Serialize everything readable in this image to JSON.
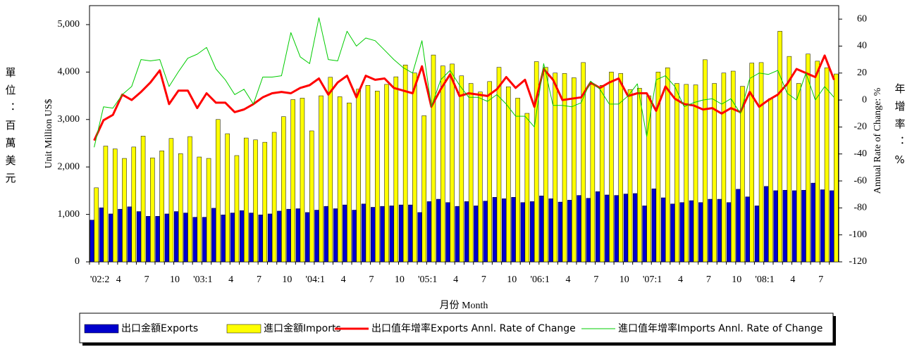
{
  "chart_data": {
    "type": "bar-line",
    "y_label_zh": "單位：百萬美元",
    "y_label": "Unit Million US$",
    "y2_label": "Annual Rate of Change: %",
    "y2_label_zh": "年增率：%",
    "x_label": "月份 Month",
    "categories": [
      "'02:2",
      null,
      "4",
      null,
      null,
      "7",
      null,
      null,
      "10",
      null,
      null,
      "'03:1",
      null,
      null,
      "4",
      null,
      null,
      "7",
      null,
      null,
      "10",
      null,
      null,
      "'04:1",
      null,
      null,
      "4",
      null,
      null,
      "7",
      null,
      null,
      "10",
      null,
      null,
      "'05:1",
      null,
      null,
      "4",
      null,
      null,
      "7",
      null,
      null,
      "10",
      null,
      null,
      "'06:1",
      null,
      null,
      "4",
      null,
      null,
      "7",
      null,
      null,
      "10",
      null,
      null,
      "'07:1",
      null,
      null,
      "4",
      null,
      null,
      "7",
      null,
      null,
      "10",
      null,
      null,
      "'08:1",
      null,
      null,
      "4",
      null,
      null,
      "7",
      null,
      null
    ],
    "ylim": [
      0,
      5400
    ],
    "yticks": [
      0,
      {
        "value": 1000,
        "label": "1,000"
      },
      {
        "value": 2000,
        "label": "2,000"
      },
      {
        "value": 3000,
        "label": "3,000"
      },
      {
        "value": 4000,
        "label": "4,000"
      },
      {
        "value": 5000,
        "label": "5,000"
      }
    ],
    "y2lim": [
      -120,
      70
    ],
    "y2ticks": [
      -120,
      -100,
      -80,
      -60,
      -40,
      -20,
      0,
      20,
      40,
      60
    ],
    "series": [
      {
        "name": "出口金額Exports",
        "kind": "bar",
        "color": "#0000cc",
        "values": [
          880,
          1140,
          1010,
          1110,
          1160,
          1060,
          960,
          960,
          1010,
          1060,
          1030,
          940,
          940,
          1130,
          990,
          1030,
          1080,
          1030,
          990,
          1010,
          1070,
          1110,
          1120,
          1040,
          1090,
          1170,
          1120,
          1200,
          1090,
          1220,
          1150,
          1170,
          1180,
          1200,
          1200,
          1040,
          1270,
          1320,
          1250,
          1170,
          1270,
          1180,
          1280,
          1360,
          1330,
          1360,
          1250,
          1270,
          1390,
          1330,
          1260,
          1300,
          1400,
          1340,
          1480,
          1410,
          1400,
          1430,
          1440,
          1180,
          1540,
          1350,
          1220,
          1250,
          1290,
          1250,
          1320,
          1320,
          1250,
          1530,
          1370,
          1180,
          1590,
          1500,
          1510,
          1500,
          1510,
          1660,
          1520,
          1500
        ]
      },
      {
        "name": "進口金額Imports",
        "kind": "bar",
        "color": "#ffff00",
        "values": [
          1560,
          2440,
          2380,
          2180,
          2420,
          2650,
          2190,
          2340,
          2600,
          2280,
          2640,
          2210,
          2180,
          3000,
          2700,
          2240,
          2610,
          2570,
          2520,
          2730,
          3060,
          3420,
          3450,
          2760,
          3500,
          3890,
          3480,
          3350,
          3640,
          3720,
          3600,
          3740,
          3900,
          4150,
          3980,
          3080,
          4360,
          4130,
          4170,
          3920,
          3760,
          3580,
          3800,
          4100,
          3690,
          3450,
          3130,
          4220,
          4100,
          3980,
          3970,
          3880,
          4200,
          3740,
          3720,
          4000,
          3970,
          3630,
          3660,
          3500,
          4000,
          4090,
          3760,
          3740,
          3730,
          4260,
          3760,
          3980,
          4020,
          3700,
          4190,
          4200,
          3440,
          4860,
          4330,
          3760,
          4380,
          4230,
          4090,
          3960
        ]
      },
      {
        "name": "出口值年增率Exports Annl. Rate of Change",
        "kind": "line",
        "axis": "y2",
        "color": "#ff0000",
        "width": 3,
        "values": [
          -30,
          -15,
          -11,
          4,
          0,
          6,
          13,
          22,
          -3,
          7,
          7,
          -6,
          5,
          -2,
          -2,
          -9,
          -7,
          -3,
          2,
          5,
          6,
          5,
          9,
          11,
          16,
          4,
          13,
          18,
          2,
          18,
          15,
          16,
          9,
          7,
          5,
          25,
          -5,
          8,
          19,
          3,
          5,
          4,
          3,
          8,
          17,
          9,
          15,
          -5,
          23,
          15,
          0,
          1,
          2,
          13,
          9,
          13,
          16,
          3,
          5,
          5,
          -8,
          10,
          1,
          -3,
          -4,
          -7,
          -6,
          -10,
          -6,
          -9,
          6,
          -5,
          0,
          4,
          12,
          23,
          20,
          17,
          33,
          15
        ]
      },
      {
        "name": "進口值年增率Imports Annl. Rate of Change",
        "kind": "line",
        "axis": "y2",
        "color": "#00cc00",
        "width": 1,
        "values": [
          -35,
          -5,
          -6,
          4,
          10,
          30,
          29,
          30,
          10,
          21,
          31,
          34,
          39,
          23,
          15,
          4,
          8,
          -3,
          17,
          17,
          18,
          50,
          32,
          27,
          61,
          30,
          29,
          51,
          40,
          46,
          44,
          37,
          30,
          24,
          20,
          44,
          -5,
          15,
          22,
          11,
          2,
          2,
          -1,
          4,
          -3,
          -12,
          -12,
          -20,
          27,
          -4,
          -4,
          -5,
          -2,
          14,
          8,
          -3,
          -3,
          3,
          12,
          -27,
          15,
          18,
          10,
          -5,
          -2,
          0,
          1,
          -3,
          1,
          -10,
          16,
          20,
          19,
          22,
          5,
          0,
          20,
          0,
          10,
          2
        ]
      }
    ]
  }
}
